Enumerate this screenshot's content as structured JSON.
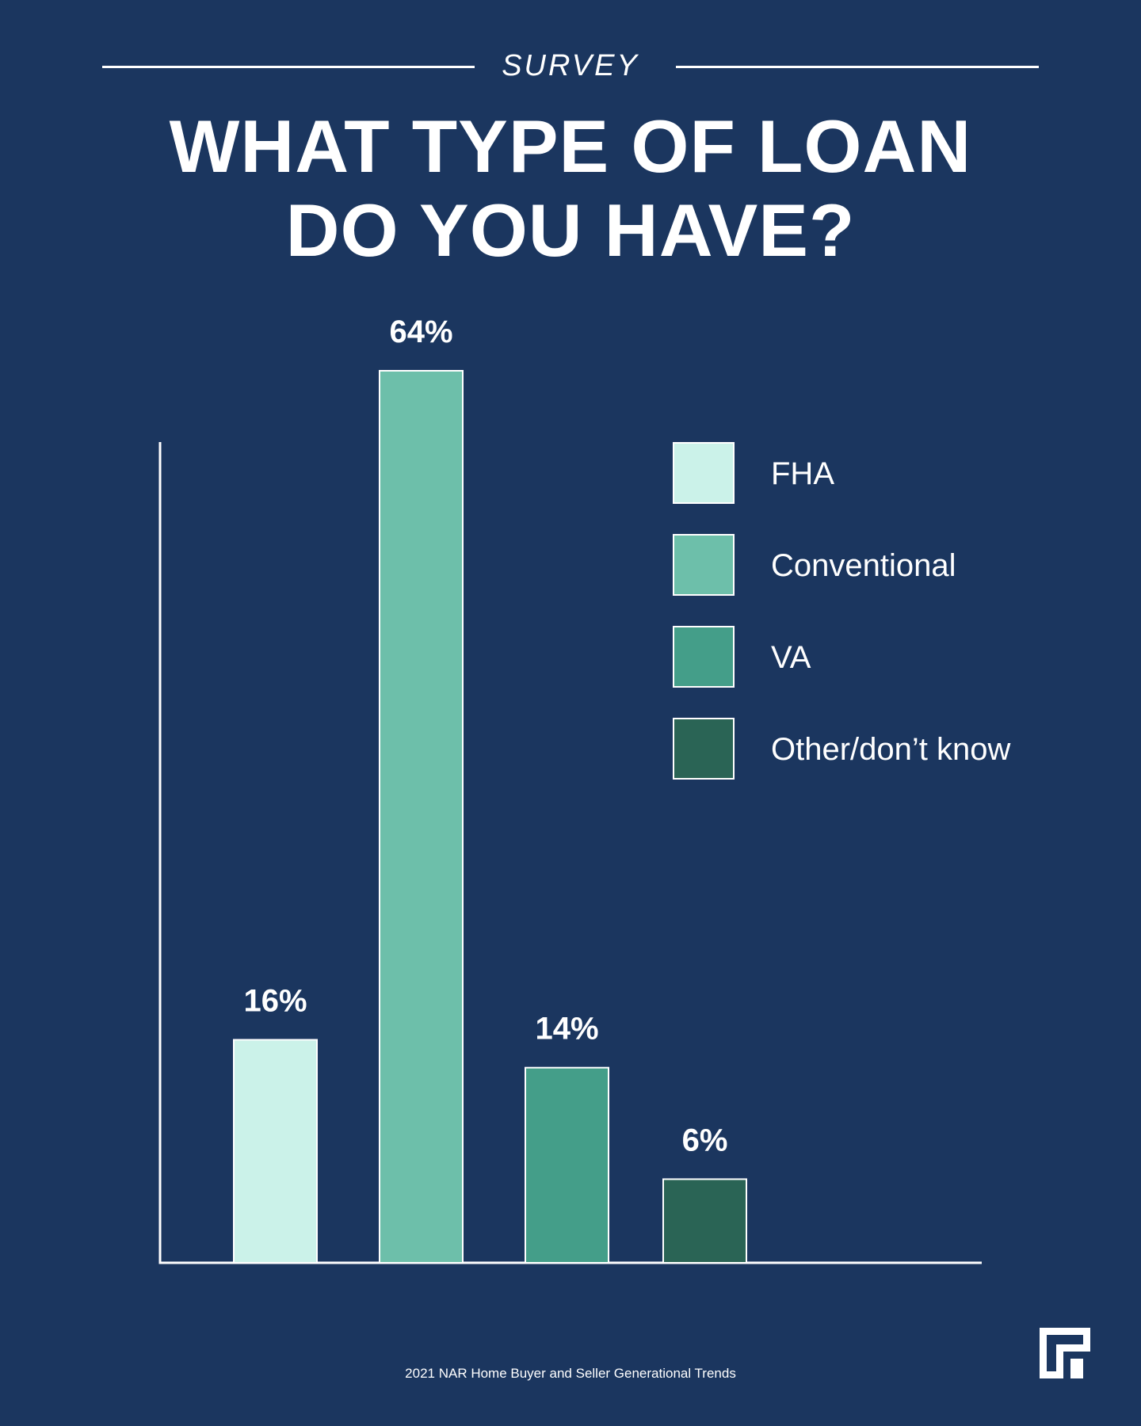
{
  "header": {
    "kicker": "SURVEY",
    "title_line1": "WHAT TYPE OF LOAN",
    "title_line2": "DO YOU HAVE?"
  },
  "chart_data": {
    "type": "bar",
    "categories": [
      "FHA",
      "Conventional",
      "VA",
      "Other/don’t know"
    ],
    "values": [
      16,
      64,
      14,
      6
    ],
    "value_labels": [
      "16%",
      "64%",
      "14%",
      "6%"
    ],
    "unit": "%",
    "ylim": [
      0,
      64
    ],
    "grid": false,
    "legend_position": "right",
    "colors": [
      "#cbf2e9",
      "#6dbfaa",
      "#449e89",
      "#2a6455"
    ],
    "legend": [
      {
        "label": "FHA",
        "color": "#cbf2e9"
      },
      {
        "label": "Conventional",
        "color": "#6dbfaa"
      },
      {
        "label": "VA",
        "color": "#449e89"
      },
      {
        "label": "Other/don’t know",
        "color": "#2a6455"
      }
    ]
  },
  "footer": {
    "source": "2021 NAR Home Buyer and Seller Generational Trends",
    "logo_icon": "brand-logo-icon"
  }
}
